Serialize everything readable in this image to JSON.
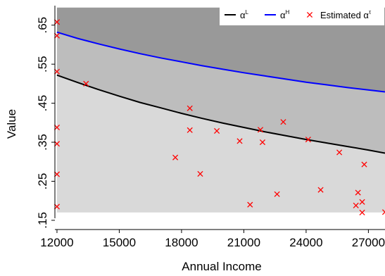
{
  "chart_data": {
    "type": "line",
    "xlabel": "Annual Income",
    "ylabel": "Value",
    "xlim": [
      11900,
      27800
    ],
    "ylim": [
      0.148,
      0.7
    ],
    "x_ticks": [
      12000,
      15000,
      18000,
      21000,
      24000,
      27000
    ],
    "x_tick_labels": [
      "12000",
      "15000",
      "18000",
      "21000",
      "24000",
      "27000"
    ],
    "y_ticks": [
      0.15,
      0.25,
      0.35,
      0.45,
      0.55,
      0.65
    ],
    "y_tick_labels": [
      ".15",
      ".25",
      ".35",
      ".45",
      ".55",
      ".65"
    ],
    "legend": {
      "placement": "top-right",
      "entries": [
        {
          "label": "α",
          "sup": "L",
          "marker": "line",
          "color": "#000000"
        },
        {
          "label": "α",
          "sup": "H",
          "marker": "line",
          "color": "#0000ff"
        },
        {
          "label": "Estimated α",
          "sup": "τ",
          "marker": "x",
          "color": "#ff0000"
        }
      ]
    },
    "bands": {
      "x_range": [
        12000,
        27800
      ],
      "top": 0.695,
      "bottom": 0.17,
      "colors": {
        "top": "#999999",
        "middle": "#bdbdbd",
        "bottom": "#d9d9d9"
      }
    },
    "series": [
      {
        "name": "αL",
        "color": "#000000",
        "x": [
          12000,
          13000,
          14000,
          15000,
          16000,
          17000,
          18000,
          19000,
          20000,
          21000,
          22000,
          23000,
          24000,
          25000,
          26000,
          27000,
          27800
        ],
        "y": [
          0.522,
          0.503,
          0.485,
          0.468,
          0.452,
          0.438,
          0.424,
          0.411,
          0.399,
          0.388,
          0.377,
          0.367,
          0.357,
          0.348,
          0.339,
          0.33,
          0.322
        ]
      },
      {
        "name": "αH",
        "color": "#0000ff",
        "x": [
          12000,
          13000,
          14000,
          15000,
          16000,
          17000,
          18000,
          19000,
          20000,
          21000,
          22000,
          23000,
          24000,
          25000,
          26000,
          27000,
          27800
        ],
        "y": [
          0.632,
          0.616,
          0.602,
          0.589,
          0.577,
          0.566,
          0.556,
          0.546,
          0.537,
          0.528,
          0.52,
          0.512,
          0.504,
          0.497,
          0.49,
          0.484,
          0.479
        ]
      },
      {
        "name": "Estimated ατ",
        "color": "#ff0000",
        "marker": "x",
        "x": [
          12000,
          12000,
          12000,
          12000,
          12000,
          12000,
          12000,
          13400,
          17700,
          18400,
          18400,
          18900,
          19700,
          20800,
          21300,
          21800,
          21900,
          22600,
          22900,
          24100,
          24700,
          25600,
          26400,
          26500,
          26700,
          26700,
          26800,
          27800
        ],
        "y": [
          0.658,
          0.623,
          0.531,
          0.388,
          0.346,
          0.268,
          0.185,
          0.5,
          0.311,
          0.437,
          0.381,
          0.269,
          0.379,
          0.353,
          0.19,
          0.382,
          0.35,
          0.217,
          0.402,
          0.357,
          0.228,
          0.324,
          0.188,
          0.221,
          0.197,
          0.17,
          0.293,
          0.171
        ]
      }
    ]
  }
}
